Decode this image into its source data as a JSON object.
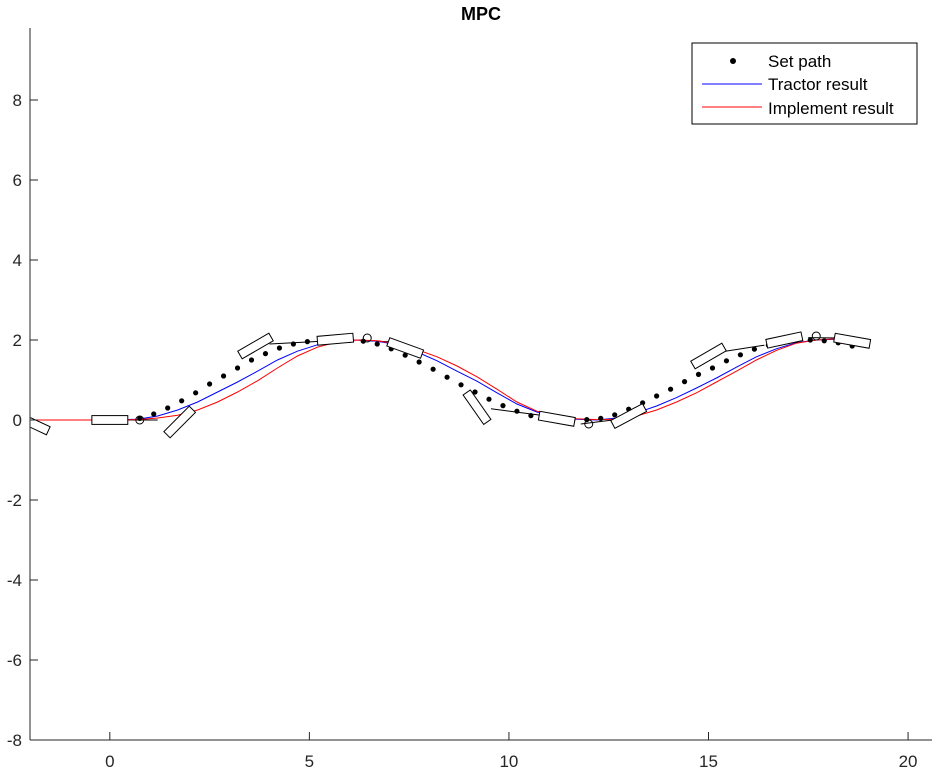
{
  "chart_data": {
    "type": "line",
    "title": "MPC",
    "xlabel": "",
    "ylabel": "",
    "xlim": [
      -2,
      20.6
    ],
    "ylim": [
      -8,
      9.8
    ],
    "xticks": [
      0,
      5,
      10,
      15,
      20
    ],
    "yticks": [
      -8,
      -6,
      -4,
      -2,
      0,
      2,
      4,
      6,
      8
    ],
    "xtick_labels": [
      "0",
      "5",
      "10",
      "15",
      "20"
    ],
    "ytick_labels": [
      "-8",
      "-6",
      "-4",
      "-2",
      "0",
      "2",
      "4",
      "6",
      "8"
    ],
    "grid": false,
    "legend_position": "top-right",
    "legend": [
      "Set path",
      "Tractor result",
      "Implement result"
    ],
    "colors": {
      "set_path": "#000000",
      "tractor": "#0000ff",
      "implement": "#ff0000",
      "outline": "#000000"
    },
    "series": [
      {
        "name": "Set path",
        "style": "dots",
        "x": [
          0.75,
          1.1,
          1.45,
          1.8,
          2.15,
          2.5,
          2.85,
          3.2,
          3.55,
          3.9,
          4.25,
          4.6,
          4.95,
          5.3,
          5.65,
          6.0,
          6.35,
          6.7,
          7.05,
          7.4,
          7.75,
          8.1,
          8.45,
          8.8,
          9.15,
          9.5,
          9.85,
          10.2,
          10.55,
          10.9,
          11.25,
          11.6,
          11.95,
          12.3,
          12.65,
          13.0,
          13.35,
          13.7,
          14.05,
          14.4,
          14.75,
          15.1,
          15.45,
          15.8,
          16.15,
          16.5,
          16.85,
          17.2,
          17.55,
          17.9,
          18.25,
          18.6
        ],
        "y": [
          0.04,
          0.15,
          0.3,
          0.48,
          0.68,
          0.9,
          1.1,
          1.3,
          1.5,
          1.66,
          1.8,
          1.9,
          1.96,
          1.99,
          1.99,
          1.99,
          1.97,
          1.9,
          1.78,
          1.62,
          1.45,
          1.27,
          1.07,
          0.88,
          0.7,
          0.52,
          0.36,
          0.22,
          0.11,
          0.04,
          0.01,
          0.0,
          0.01,
          0.04,
          0.13,
          0.27,
          0.43,
          0.6,
          0.77,
          0.96,
          1.14,
          1.3,
          1.48,
          1.63,
          1.77,
          1.87,
          1.95,
          1.99,
          2.0,
          1.98,
          1.93,
          1.85
        ]
      },
      {
        "name": "Tractor result",
        "style": "line",
        "x": [
          -2.0,
          0.0,
          0.7,
          1.2,
          1.7,
          2.2,
          2.7,
          3.2,
          3.7,
          4.2,
          4.7,
          5.2,
          5.7,
          6.2,
          6.7,
          7.2,
          7.7,
          8.2,
          8.7,
          9.2,
          9.7,
          10.2,
          10.7,
          11.2,
          11.7,
          12.2,
          12.7,
          13.2,
          13.7,
          14.2,
          14.7,
          15.2,
          15.7,
          16.2,
          16.7,
          17.2,
          17.7,
          18.2
        ],
        "y": [
          0.0,
          0.0,
          0.02,
          0.1,
          0.25,
          0.45,
          0.7,
          0.95,
          1.22,
          1.5,
          1.72,
          1.88,
          1.97,
          2.0,
          1.97,
          1.88,
          1.7,
          1.48,
          1.22,
          0.97,
          0.68,
          0.4,
          0.2,
          0.08,
          0.02,
          0.0,
          0.05,
          0.18,
          0.35,
          0.56,
          0.8,
          1.05,
          1.32,
          1.58,
          1.78,
          1.93,
          2.0,
          2.02
        ]
      },
      {
        "name": "Implement result",
        "style": "line",
        "x": [
          -2.0,
          0.0,
          0.7,
          1.2,
          1.7,
          2.2,
          2.7,
          3.2,
          3.7,
          4.2,
          4.7,
          5.2,
          5.7,
          6.2,
          6.7,
          7.2,
          7.7,
          8.2,
          8.7,
          9.2,
          9.7,
          10.2,
          10.7,
          11.2,
          11.7,
          12.2,
          12.7,
          13.2,
          13.7,
          14.2,
          14.7,
          15.2,
          15.7,
          16.2,
          16.7,
          17.2,
          17.7,
          18.2
        ],
        "y": [
          0.0,
          0.0,
          0.01,
          0.05,
          0.12,
          0.25,
          0.45,
          0.7,
          0.98,
          1.3,
          1.6,
          1.82,
          1.95,
          2.0,
          1.98,
          1.9,
          1.76,
          1.58,
          1.35,
          1.08,
          0.77,
          0.45,
          0.22,
          0.09,
          0.03,
          0.01,
          0.02,
          0.1,
          0.25,
          0.45,
          0.68,
          0.95,
          1.22,
          1.5,
          1.74,
          1.92,
          2.0,
          2.03
        ]
      }
    ],
    "markers": {
      "circles": {
        "x": [
          0.75,
          6.45,
          12.0,
          17.7
        ],
        "y": [
          0.0,
          2.05,
          -0.1,
          2.1
        ]
      },
      "tractor_boxes": [
        {
          "x": -1.95,
          "y": -0.08,
          "angle": -25
        },
        {
          "x": 0.0,
          "y": 0.0,
          "angle": 0
        },
        {
          "x": 1.75,
          "y": -0.05,
          "angle": 45
        },
        {
          "x": 3.65,
          "y": 1.85,
          "angle": 30
        },
        {
          "x": 5.65,
          "y": 2.02,
          "angle": 5
        },
        {
          "x": 7.4,
          "y": 1.8,
          "angle": -20
        },
        {
          "x": 9.2,
          "y": 0.32,
          "angle": -55
        },
        {
          "x": 11.2,
          "y": 0.03,
          "angle": -10
        },
        {
          "x": 13.0,
          "y": 0.1,
          "angle": 28
        },
        {
          "x": 15.0,
          "y": 1.6,
          "angle": 30
        },
        {
          "x": 16.9,
          "y": 2.0,
          "angle": 12
        },
        {
          "x": 18.6,
          "y": 1.98,
          "angle": -10
        }
      ],
      "hitch_lines": [
        {
          "x1": 0.4,
          "y1": 0.0,
          "x2": 1.2,
          "y2": 0.0
        },
        {
          "x1": 4.0,
          "y1": 1.9,
          "x2": 5.3,
          "y2": 1.97
        },
        {
          "x1": 6.2,
          "y1": 2.0,
          "x2": 7.1,
          "y2": 1.95
        },
        {
          "x1": 9.55,
          "y1": 0.28,
          "x2": 10.8,
          "y2": 0.12
        },
        {
          "x1": 11.8,
          "y1": -0.1,
          "x2": 12.6,
          "y2": 0.0
        },
        {
          "x1": 15.3,
          "y1": 1.7,
          "x2": 16.4,
          "y2": 1.87
        },
        {
          "x1": 17.5,
          "y1": 2.06,
          "x2": 18.3,
          "y2": 2.05
        }
      ]
    }
  }
}
